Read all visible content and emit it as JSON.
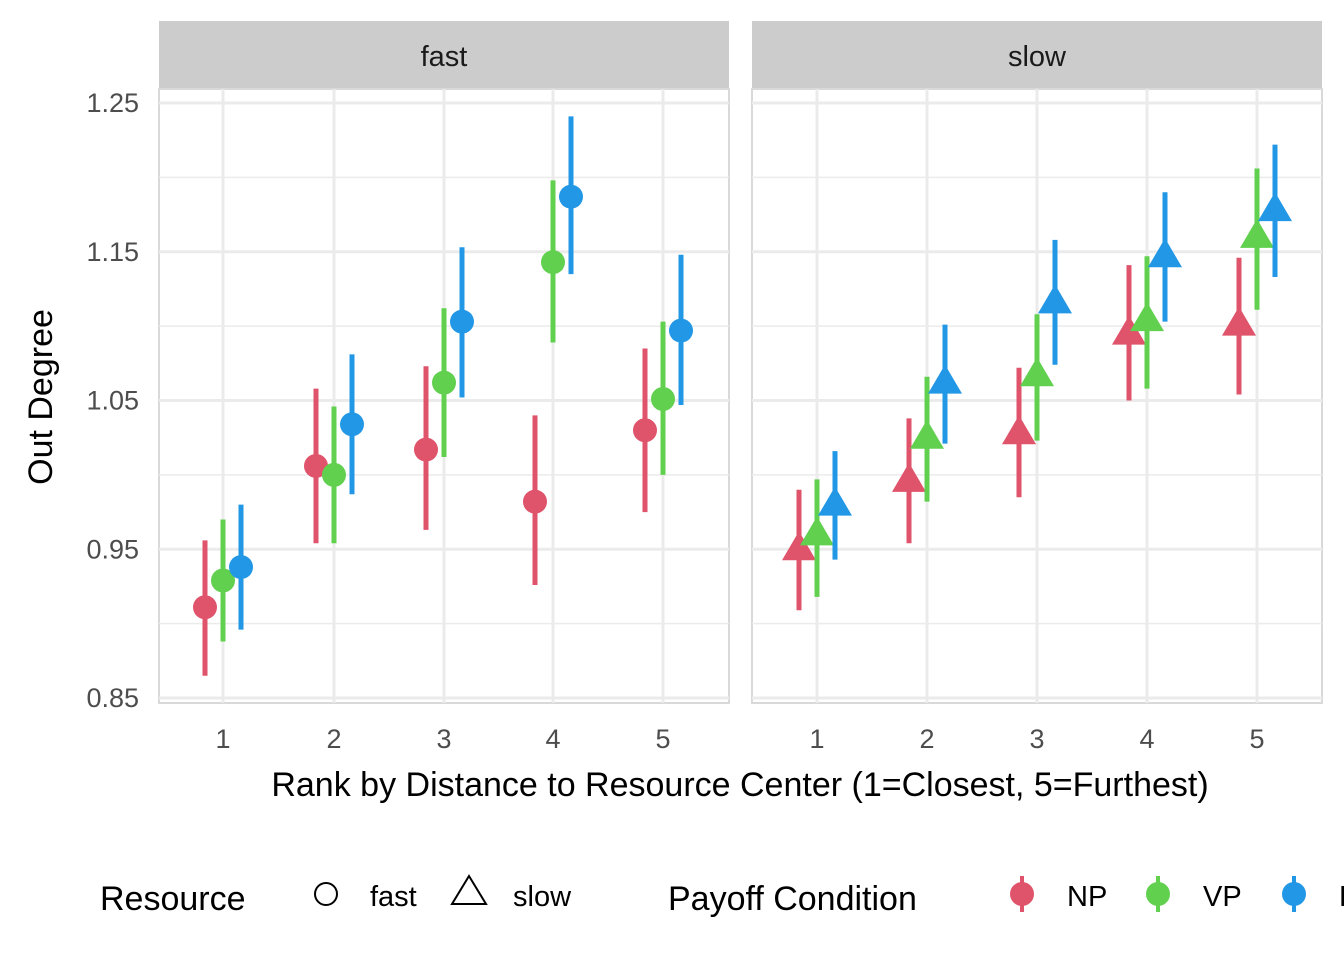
{
  "chart_data": {
    "type": "scatter",
    "subtype": "point-range, faceted",
    "ylabel": "Out Degree",
    "xlabel": "Rank by Distance to Resource Center (1=Closest, 5=Furthest)",
    "ylim": [
      0.85,
      1.25
    ],
    "yticks": [
      "0.85",
      "0.95",
      "1.05",
      "1.15",
      "1.25"
    ],
    "xticks": [
      "1",
      "2",
      "3",
      "4",
      "5"
    ],
    "grid": true,
    "legend_position": "bottom",
    "legend": {
      "shape_title": "Resource",
      "shapes": [
        {
          "label": "fast",
          "shape": "circle"
        },
        {
          "label": "slow",
          "shape": "triangle"
        }
      ],
      "color_title": "Payoff Condition"
    },
    "series": [
      {
        "name": "NP",
        "color": "#DF536B"
      },
      {
        "name": "VP",
        "color": "#61D04F"
      },
      {
        "name": "P",
        "color": "#2297E6"
      }
    ],
    "facets": [
      {
        "title": "fast",
        "shape": "circle",
        "data": {
          "NP": {
            "mean": [
              0.911,
              1.006,
              1.017,
              0.982,
              1.03
            ],
            "lo": [
              0.865,
              0.954,
              0.963,
              0.926,
              0.975
            ],
            "hi": [
              0.956,
              1.058,
              1.073,
              1.04,
              1.085
            ]
          },
          "VP": {
            "mean": [
              0.929,
              1.0,
              1.062,
              1.143,
              1.051
            ],
            "lo": [
              0.888,
              0.954,
              1.012,
              1.089,
              1.0
            ],
            "hi": [
              0.97,
              1.046,
              1.112,
              1.198,
              1.103
            ]
          },
          "P": {
            "mean": [
              0.938,
              1.034,
              1.103,
              1.187,
              1.097
            ],
            "lo": [
              0.896,
              0.987,
              1.052,
              1.135,
              1.047
            ],
            "hi": [
              0.98,
              1.081,
              1.153,
              1.241,
              1.148
            ]
          }
        }
      },
      {
        "title": "slow",
        "shape": "triangle",
        "data": {
          "NP": {
            "mean": [
              0.95,
              0.996,
              1.028,
              1.095,
              1.101
            ],
            "lo": [
              0.909,
              0.954,
              0.985,
              1.05,
              1.054
            ],
            "hi": [
              0.99,
              1.038,
              1.072,
              1.141,
              1.146
            ]
          },
          "VP": {
            "mean": [
              0.96,
              1.025,
              1.067,
              1.104,
              1.16
            ],
            "lo": [
              0.918,
              0.982,
              1.023,
              1.058,
              1.111
            ],
            "hi": [
              0.997,
              1.066,
              1.108,
              1.147,
              1.206
            ]
          },
          "P": {
            "mean": [
              0.98,
              1.062,
              1.116,
              1.147,
              1.178
            ],
            "lo": [
              0.943,
              1.021,
              1.074,
              1.103,
              1.133
            ],
            "hi": [
              1.016,
              1.101,
              1.158,
              1.19,
              1.222
            ]
          }
        }
      }
    ]
  }
}
